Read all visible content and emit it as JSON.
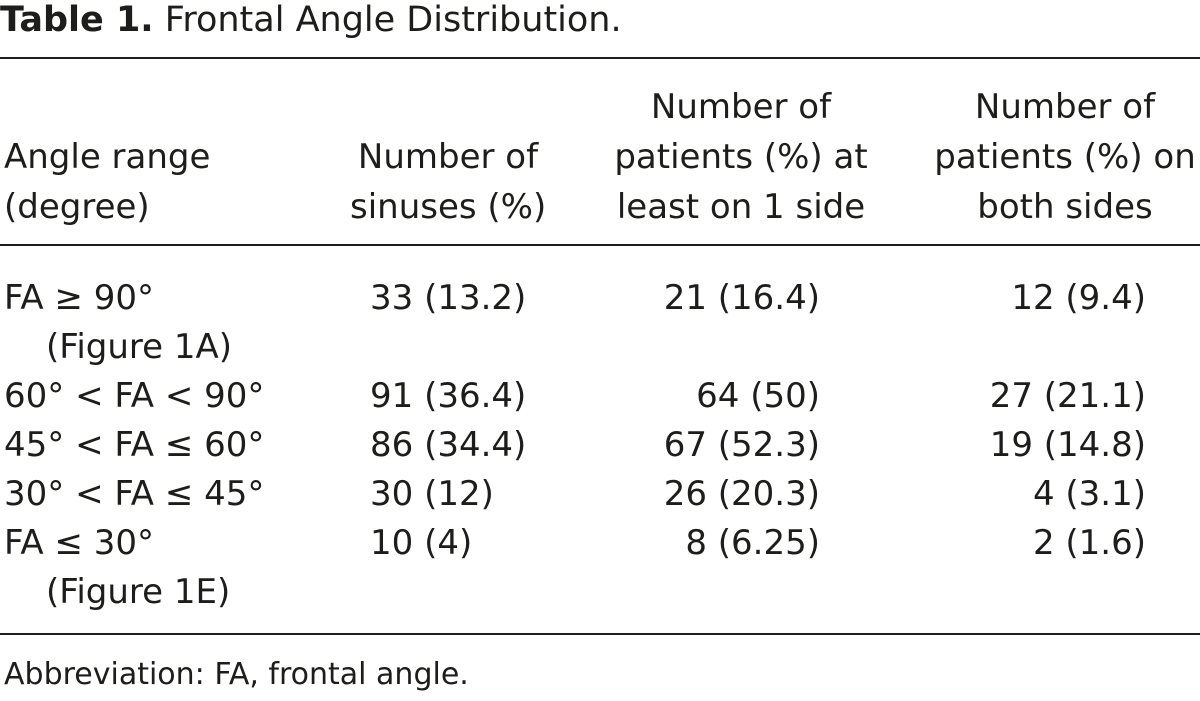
{
  "table": {
    "label": "Table 1.",
    "caption": "Frontal Angle Distribution.",
    "columns": [
      [
        "Angle range",
        "(degree)"
      ],
      [
        "Number of",
        "sinuses (%)"
      ],
      [
        "Number of",
        "patients (%) at",
        "least on 1 side"
      ],
      [
        "Number of",
        "patients (%) on",
        "both sides"
      ]
    ],
    "rows": [
      {
        "range": "FA ≥ 90°",
        "range_note": "(Figure 1A)",
        "sinuses": "33 (13.2)",
        "one_side": "21 (16.4)",
        "both_sides": "12 (9.4)"
      },
      {
        "range": "60° < FA < 90°",
        "range_note": "",
        "sinuses": "91 (36.4)",
        "one_side": "64 (50)",
        "both_sides": "27 (21.1)"
      },
      {
        "range": "45° < FA ≤ 60°",
        "range_note": "",
        "sinuses": "86 (34.4)",
        "one_side": "67 (52.3)",
        "both_sides": "19 (14.8)"
      },
      {
        "range": "30° < FA ≤ 45°",
        "range_note": "",
        "sinuses": "30 (12)",
        "one_side": "26 (20.3)",
        "both_sides": "4 (3.1)"
      },
      {
        "range": "FA ≤ 30°",
        "range_note": "(Figure 1E)",
        "sinuses": "10 (4)",
        "one_side": "8 (6.25)",
        "both_sides": "2 (1.6)"
      }
    ],
    "footnote": "Abbreviation: FA, frontal angle."
  }
}
